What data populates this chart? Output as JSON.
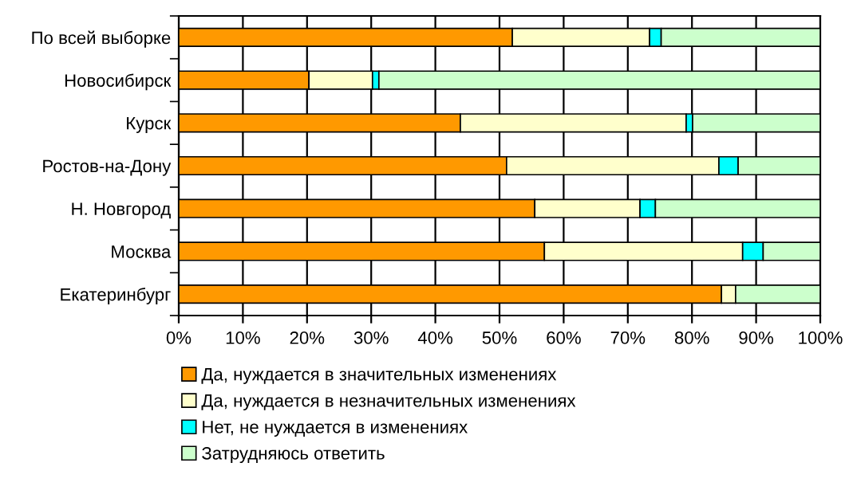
{
  "chart_data": {
    "type": "bar",
    "orientation": "horizontal",
    "stacked": true,
    "categories": [
      "По всей выборке",
      "Новосибирск",
      "Курск",
      "Ростов-на-Дону",
      "Н. Новгород",
      "Москва",
      "Екатеринбург"
    ],
    "series": [
      {
        "name": "Да, нуждается в значительных изменениях",
        "color": "#ff9900",
        "values": [
          52.0,
          20.3,
          43.9,
          51.1,
          55.5,
          57.0,
          84.6
        ]
      },
      {
        "name": "Да, нуждается в незначительных изменениях",
        "color": "#ffffcc",
        "values": [
          21.4,
          9.9,
          35.2,
          33.1,
          16.4,
          30.9,
          2.2
        ]
      },
      {
        "name": "Нет, не нуждается в изменениях",
        "color": "#00ffff",
        "values": [
          1.8,
          1.0,
          1.0,
          3.0,
          2.4,
          3.2,
          0
        ]
      },
      {
        "name": "Затрудняюсь ответить",
        "color": "#ccffcc",
        "values": [
          24.8,
          68.8,
          19.9,
          12.8,
          25.7,
          8.9,
          13.2
        ]
      }
    ],
    "xlim": [
      0,
      100
    ],
    "xticks": [
      {
        "value": 0,
        "label": "0%"
      },
      {
        "value": 10,
        "label": "10%"
      },
      {
        "value": 20,
        "label": "20%"
      },
      {
        "value": 30,
        "label": "30%"
      },
      {
        "value": 40,
        "label": "40%"
      },
      {
        "value": 50,
        "label": "50%"
      },
      {
        "value": 60,
        "label": "60%"
      },
      {
        "value": 70,
        "label": "70%"
      },
      {
        "value": 80,
        "label": "80%"
      },
      {
        "value": 90,
        "label": "90%"
      },
      {
        "value": 100,
        "label": "100%"
      }
    ],
    "grid": "x",
    "legend": "bottom"
  }
}
